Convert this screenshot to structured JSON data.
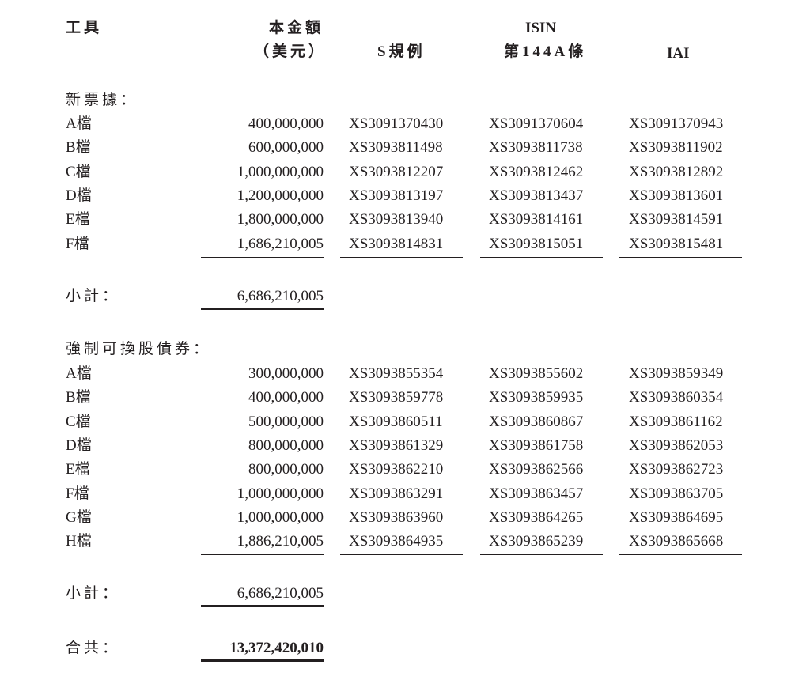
{
  "header": {
    "instrument": "工具",
    "principal_line1": "本金額",
    "principal_line2": "（美元）",
    "isin": "ISIN",
    "reg_s": "S規例",
    "rule_144a": "第144A條",
    "iai": "IAI"
  },
  "sections": [
    {
      "title": "新票據：",
      "rows": [
        {
          "tranche": "A檔",
          "amount": "400,000,000",
          "reg_s": "XS3091370430",
          "rule_144a": "XS3091370604",
          "iai": "XS3091370943"
        },
        {
          "tranche": "B檔",
          "amount": "600,000,000",
          "reg_s": "XS3093811498",
          "rule_144a": "XS3093811738",
          "iai": "XS3093811902"
        },
        {
          "tranche": "C檔",
          "amount": "1,000,000,000",
          "reg_s": "XS3093812207",
          "rule_144a": "XS3093812462",
          "iai": "XS3093812892"
        },
        {
          "tranche": "D檔",
          "amount": "1,200,000,000",
          "reg_s": "XS3093813197",
          "rule_144a": "XS3093813437",
          "iai": "XS3093813601"
        },
        {
          "tranche": "E檔",
          "amount": "1,800,000,000",
          "reg_s": "XS3093813940",
          "rule_144a": "XS3093814161",
          "iai": "XS3093814591"
        },
        {
          "tranche": "F檔",
          "amount": "1,686,210,005",
          "reg_s": "XS3093814831",
          "rule_144a": "XS3093815051",
          "iai": "XS3093815481"
        }
      ],
      "subtotal_label": "小計：",
      "subtotal": "6,686,210,005"
    },
    {
      "title": "強制可換股債券：",
      "rows": [
        {
          "tranche": "A檔",
          "amount": "300,000,000",
          "reg_s": "XS3093855354",
          "rule_144a": "XS3093855602",
          "iai": "XS3093859349"
        },
        {
          "tranche": "B檔",
          "amount": "400,000,000",
          "reg_s": "XS3093859778",
          "rule_144a": "XS3093859935",
          "iai": "XS3093860354"
        },
        {
          "tranche": "C檔",
          "amount": "500,000,000",
          "reg_s": "XS3093860511",
          "rule_144a": "XS3093860867",
          "iai": "XS3093861162"
        },
        {
          "tranche": "D檔",
          "amount": "800,000,000",
          "reg_s": "XS3093861329",
          "rule_144a": "XS3093861758",
          "iai": "XS3093862053"
        },
        {
          "tranche": "E檔",
          "amount": "800,000,000",
          "reg_s": "XS3093862210",
          "rule_144a": "XS3093862566",
          "iai": "XS3093862723"
        },
        {
          "tranche": "F檔",
          "amount": "1,000,000,000",
          "reg_s": "XS3093863291",
          "rule_144a": "XS3093863457",
          "iai": "XS3093863705"
        },
        {
          "tranche": "G檔",
          "amount": "1,000,000,000",
          "reg_s": "XS3093863960",
          "rule_144a": "XS3093864265",
          "iai": "XS3093864695"
        },
        {
          "tranche": "H檔",
          "amount": "1,886,210,005",
          "reg_s": "XS3093864935",
          "rule_144a": "XS3093865239",
          "iai": "XS3093865668"
        }
      ],
      "subtotal_label": "小計：",
      "subtotal": "6,686,210,005"
    }
  ],
  "total_label": "合共：",
  "total": "13,372,420,010"
}
